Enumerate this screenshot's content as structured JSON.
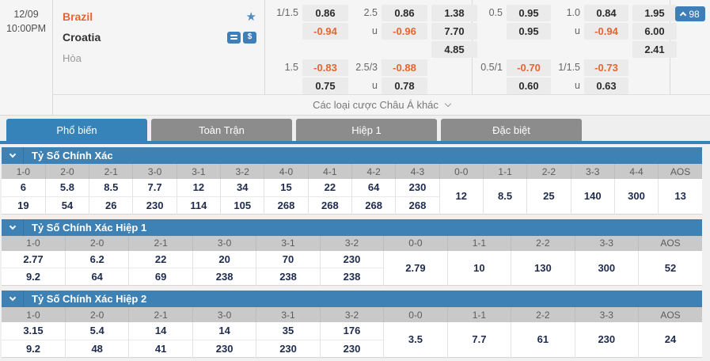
{
  "match": {
    "date": "12/09",
    "time": "10:00PM",
    "home_team": "Brazil",
    "away_team": "Croatia",
    "draw_label": "Hòa",
    "star_icon": "★",
    "markets_count": "98",
    "more_bets_label": "Các loại cược Châu Á khác",
    "full_time": {
      "hdp_line_1": "1/1.5",
      "hdp_home_1": "0.86",
      "hdp_away_1": "-0.94",
      "hdp_line_2": "1.5",
      "hdp_home_2": "-0.83",
      "hdp_away_2": "0.75",
      "ou_line_1": "2.5",
      "ou_over_1": "0.86",
      "ou_u_1": "u",
      "ou_under_1": "-0.96",
      "ou_line_2": "2.5/3",
      "ou_over_2": "-0.88",
      "ou_u_2": "u",
      "ou_under_2": "0.78",
      "x12_home": "1.38",
      "x12_away": "7.70",
      "x12_draw": "4.85"
    },
    "first_half": {
      "hdp_line_1": "0.5",
      "hdp_home_1": "0.95",
      "hdp_away_1": "0.95",
      "hdp_line_2": "0.5/1",
      "hdp_home_2": "-0.70",
      "hdp_away_2": "0.60",
      "ou_line_1": "1.0",
      "ou_over_1": "0.84",
      "ou_u_1": "u",
      "ou_under_1": "-0.94",
      "ou_line_2": "1/1.5",
      "ou_over_2": "-0.73",
      "ou_u_2": "u",
      "ou_under_2": "0.63",
      "x12_home": "1.95",
      "x12_away": "6.00",
      "x12_draw": "2.41"
    }
  },
  "tabs": [
    {
      "id": "pho-bien",
      "label": "Phổ biến",
      "active": true
    },
    {
      "id": "toan-tran",
      "label": "Toàn Trận",
      "active": false
    },
    {
      "id": "hiep-1",
      "label": "Hiệp 1",
      "active": false
    },
    {
      "id": "dac-biet",
      "label": "Đặc biệt",
      "active": false
    }
  ],
  "score_tables": [
    {
      "id": "full-time",
      "title": "Tỷ Số Chính Xác",
      "headers": [
        "1-0",
        "2-0",
        "2-1",
        "3-0",
        "3-1",
        "3-2",
        "4-0",
        "4-1",
        "4-2",
        "4-3",
        "0-0",
        "1-1",
        "2-2",
        "3-3",
        "4-4",
        "AOS"
      ],
      "top_row": [
        "6",
        "5.8",
        "8.5",
        "7.7",
        "12",
        "34",
        "15",
        "22",
        "64",
        "230"
      ],
      "bottom_row": [
        "19",
        "54",
        "26",
        "230",
        "114",
        "105",
        "268",
        "268",
        "268",
        "268"
      ],
      "merged_row": [
        "12",
        "8.5",
        "25",
        "140",
        "300",
        "13"
      ]
    },
    {
      "id": "first-half",
      "title": "Tỷ Số Chính Xác Hiệp 1",
      "headers": [
        "1-0",
        "2-0",
        "2-1",
        "3-0",
        "3-1",
        "3-2",
        "0-0",
        "1-1",
        "2-2",
        "3-3",
        "AOS"
      ],
      "top_row": [
        "2.77",
        "6.2",
        "22",
        "20",
        "70",
        "230"
      ],
      "bottom_row": [
        "9.2",
        "64",
        "69",
        "238",
        "238",
        "238"
      ],
      "merged_row": [
        "2.79",
        "10",
        "130",
        "300",
        "52"
      ]
    },
    {
      "id": "second-half",
      "title": "Tỷ Số Chính Xác Hiệp 2",
      "headers": [
        "1-0",
        "2-0",
        "2-1",
        "3-0",
        "3-1",
        "3-2",
        "0-0",
        "1-1",
        "2-2",
        "3-3",
        "AOS"
      ],
      "top_row": [
        "3.15",
        "5.4",
        "14",
        "14",
        "35",
        "176"
      ],
      "bottom_row": [
        "9.2",
        "48",
        "41",
        "230",
        "230",
        "230"
      ],
      "merged_row": [
        "3.5",
        "7.7",
        "61",
        "230",
        "24"
      ]
    }
  ],
  "colors": {
    "accent_blue": "#3583b8",
    "section_blue": "#3e81b4",
    "negative_orange": "#e8642e",
    "header_gray": "#c9c9c9"
  }
}
